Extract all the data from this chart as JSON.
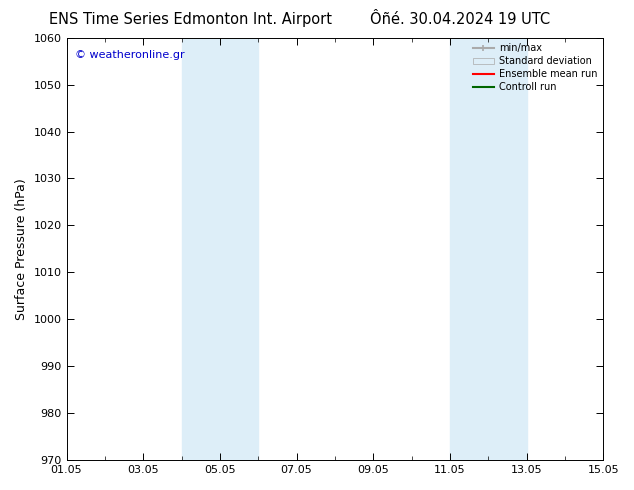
{
  "title_left": "ENS Time Series Edmonton Int. Airport",
  "title_right": "Ôñé. 30.04.2024 19 UTC",
  "ylabel": "Surface Pressure (hPa)",
  "ylim": [
    970,
    1060
  ],
  "yticks": [
    970,
    980,
    990,
    1000,
    1010,
    1020,
    1030,
    1040,
    1050,
    1060
  ],
  "xlim_start": 0,
  "xlim_end": 14,
  "xtick_labels": [
    "01.05",
    "03.05",
    "05.05",
    "07.05",
    "09.05",
    "11.05",
    "13.05",
    "15.05"
  ],
  "xtick_positions": [
    0,
    2,
    4,
    6,
    8,
    10,
    12,
    14
  ],
  "shaded_bands": [
    {
      "x_start": 3.0,
      "x_end": 5.0,
      "color": "#ddeef8"
    },
    {
      "x_start": 10.0,
      "x_end": 12.0,
      "color": "#ddeef8"
    }
  ],
  "copyright_text": "© weatheronline.gr",
  "copyright_color": "#0000cc",
  "legend_items": [
    {
      "label": "min/max",
      "color": "#aaaaaa",
      "lw": 1.5,
      "ls": "-"
    },
    {
      "label": "Standard deviation",
      "color": "#ddeef8",
      "lw": 8,
      "ls": "-"
    },
    {
      "label": "Ensemble mean run",
      "color": "#ff0000",
      "lw": 1.5,
      "ls": "-"
    },
    {
      "label": "Controll run",
      "color": "#006600",
      "lw": 1.5,
      "ls": "-"
    }
  ],
  "bg_color": "#ffffff",
  "grid_color": "#cccccc",
  "title_fontsize": 10.5,
  "tick_fontsize": 8,
  "ylabel_fontsize": 9
}
